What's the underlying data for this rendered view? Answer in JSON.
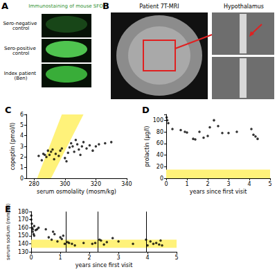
{
  "panels": {
    "A": {
      "label": "A",
      "title": "Immunostaining of mouse SFO",
      "rows": [
        "Sero-negative control",
        "Sero-positive control",
        "Index patient (Ben)"
      ]
    },
    "B": {
      "label": "B",
      "title": "Patient 7T-MRI",
      "inset_title": "Hypothalamus"
    }
  },
  "chart_data": [
    {
      "type": "scatter",
      "title": "C",
      "xlabel": "serum osmolality (mosm/kg)",
      "ylabel": "copeptin (pmol/l)",
      "x": [
        283,
        285,
        286,
        287,
        288,
        289,
        290,
        291,
        292,
        293,
        294,
        296,
        297,
        298,
        300,
        301,
        302,
        303,
        304,
        305,
        306,
        307,
        308,
        309,
        310,
        311,
        312,
        314,
        316,
        318,
        320,
        322,
        326,
        330
      ],
      "values": [
        2.1,
        1.7,
        2.3,
        2.2,
        2.0,
        2.6,
        2.2,
        2.5,
        2.7,
        1.8,
        2.3,
        2.1,
        2.6,
        2.8,
        1.9,
        1.6,
        2.4,
        2.9,
        3.3,
        3.0,
        2.5,
        3.6,
        3.2,
        2.7,
        2.2,
        3.0,
        3.4,
        2.8,
        3.1,
        2.6,
        3.0,
        3.2,
        3.3,
        3.4
      ],
      "color": "#000000",
      "normal_range": [
        [
          282,
          0
        ],
        [
          291,
          0
        ],
        [
          312,
          6
        ],
        [
          298,
          6
        ]
      ],
      "xlim": [
        275,
        340
      ],
      "xticks": [
        280,
        300,
        320,
        340
      ],
      "ylim": [
        0,
        6
      ],
      "yticks": [
        0,
        1,
        2,
        3,
        4,
        5,
        6
      ],
      "grid": false
    },
    {
      "type": "scatter",
      "title": "D",
      "xlabel": "years since first visit",
      "ylabel": "prolactin (µg/l)",
      "x": [
        0.02,
        0.05,
        0.1,
        0.3,
        0.7,
        0.9,
        1.0,
        1.3,
        1.4,
        1.6,
        1.8,
        2.0,
        2.1,
        2.3,
        2.5,
        2.7,
        3.0,
        3.4,
        4.1,
        4.2,
        4.3,
        4.4
      ],
      "values": [
        105,
        100,
        95,
        85,
        83,
        80,
        79,
        68,
        67,
        80,
        70,
        73,
        88,
        100,
        90,
        78,
        78,
        80,
        85,
        75,
        72,
        68
      ],
      "color": "#000000",
      "normal_range": [
        0,
        15
      ],
      "xlim": [
        0,
        5
      ],
      "xticks": [
        0,
        1,
        2,
        3,
        4,
        5
      ],
      "ylim": [
        0,
        110
      ],
      "yticks": [
        0,
        20,
        40,
        60,
        80,
        100
      ],
      "grid": false
    },
    {
      "type": "scatter",
      "title": "E",
      "xlabel": "years since first visit",
      "ylabel": "serum sodium (mmol/l)",
      "x": [
        0,
        0,
        0.02,
        0.03,
        0.05,
        0.05,
        0.08,
        0.1,
        0.1,
        0.15,
        0.2,
        0.25,
        0.5,
        0.6,
        0.7,
        0.75,
        0.8,
        0.9,
        1.0,
        1.05,
        1.1,
        1.15,
        1.25,
        1.3,
        1.4,
        1.5,
        1.8,
        2.1,
        2.2,
        2.35,
        2.4,
        2.5,
        2.6,
        2.8,
        3.0,
        3.5,
        3.95,
        4.0,
        4.1,
        4.2,
        4.3,
        4.4,
        4.45,
        4.5
      ],
      "values": [
        175,
        170,
        165,
        160,
        158,
        155,
        152,
        150,
        162,
        157,
        158,
        160,
        158,
        148,
        145,
        155,
        152,
        143,
        148,
        146,
        150,
        140,
        142,
        141,
        140,
        138,
        141,
        140,
        141,
        145,
        144,
        139,
        142,
        147,
        143,
        140,
        145,
        138,
        143,
        140,
        141,
        139,
        144,
        138
      ],
      "color": "#000000",
      "normal_range": [
        135,
        145
      ],
      "vertical_lines": [
        1.2,
        2.3,
        3.95
      ],
      "xlim": [
        0,
        5
      ],
      "xticks": [
        0,
        1,
        2,
        3,
        4,
        5
      ],
      "ylim": [
        130,
        180
      ],
      "yticks": [
        130,
        140,
        150,
        160,
        170,
        180
      ],
      "grid": false
    }
  ]
}
